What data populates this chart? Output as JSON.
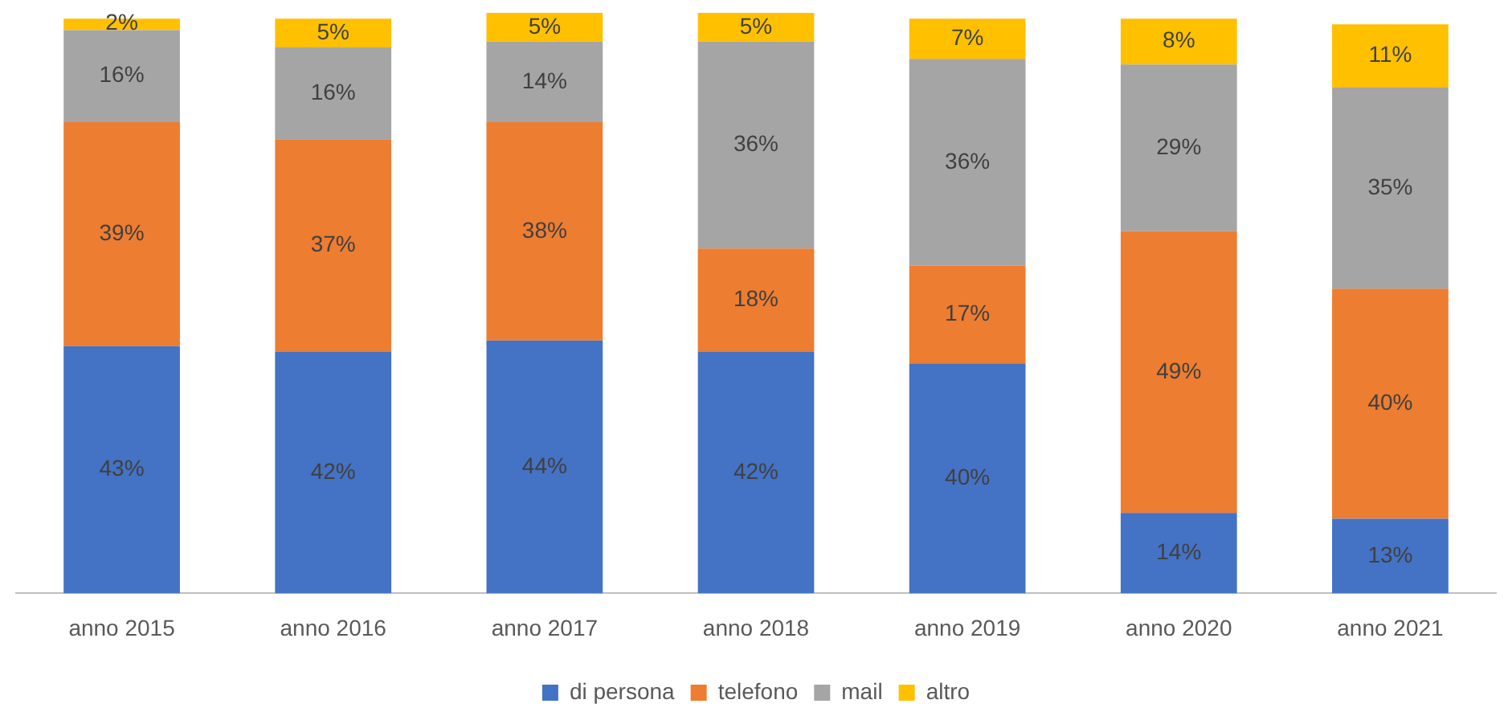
{
  "chart_data": {
    "type": "bar",
    "stacked": true,
    "categories": [
      "anno 2015",
      "anno 2016",
      "anno 2017",
      "anno 2018",
      "anno 2019",
      "anno 2020",
      "anno 2021"
    ],
    "series": [
      {
        "name": "di persona",
        "color": "#4472c4",
        "values": [
          43,
          42,
          44,
          42,
          40,
          14,
          13
        ],
        "value_labels": [
          "43%",
          "42%",
          "44%",
          "42%",
          "40%",
          "14%",
          "13%"
        ]
      },
      {
        "name": "telefono",
        "color": "#ed7d31",
        "values": [
          39,
          37,
          38,
          18,
          17,
          49,
          40
        ],
        "value_labels": [
          "39%",
          "37%",
          "38%",
          "18%",
          "17%",
          "49%",
          "40%"
        ]
      },
      {
        "name": "mail",
        "color": "#a5a5a5",
        "values": [
          16,
          16,
          14,
          36,
          36,
          29,
          35
        ],
        "value_labels": [
          "16%",
          "16%",
          "14%",
          "36%",
          "36%",
          "29%",
          "35%"
        ]
      },
      {
        "name": "altro",
        "color": "#ffc000",
        "values": [
          2,
          5,
          5,
          5,
          7,
          8,
          11
        ],
        "value_labels": [
          "2%",
          "5%",
          "5%",
          "5%",
          "7%",
          "8%",
          "11%"
        ]
      }
    ],
    "tick_labels": "x",
    "legend": "bottom",
    "grid": false
  }
}
